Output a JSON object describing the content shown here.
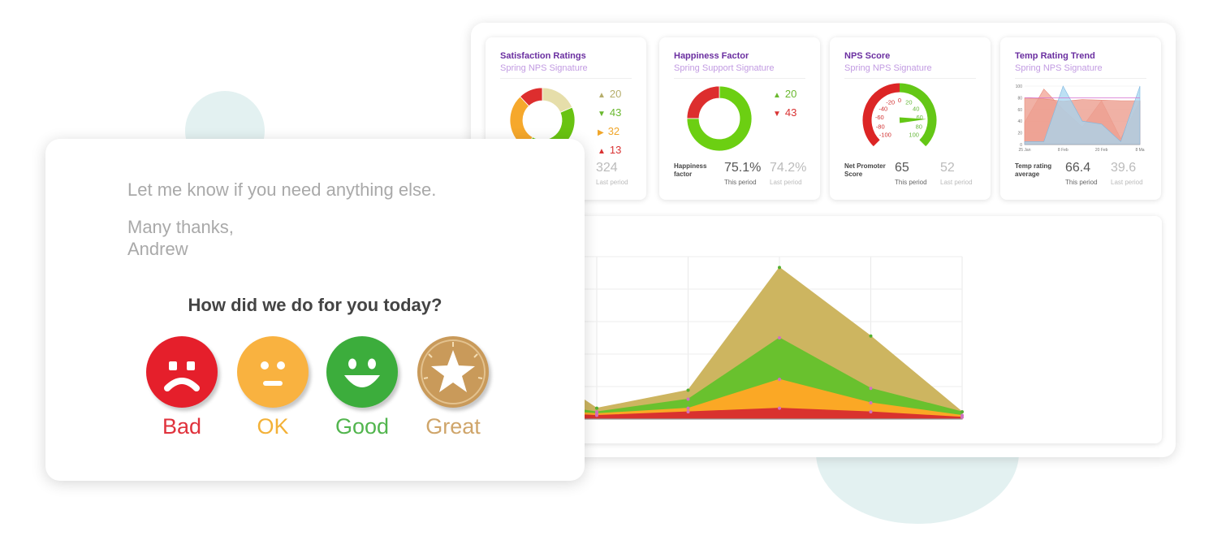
{
  "colors": {
    "title_purple": "#6a2ea0",
    "subtitle_purple": "#c29be2",
    "bad": "#e51f2b",
    "ok": "#f9b240",
    "good": "#3cad3c",
    "great": "#c99a5a"
  },
  "cards": [
    {
      "title": "Satisfaction Ratings",
      "subtitle": "Spring NPS Signature",
      "legend": [
        {
          "arrow": "▲",
          "value": "20",
          "color": "#b5ad6a"
        },
        {
          "arrow": "▼",
          "value": "43",
          "color": "#6ab82f"
        },
        {
          "arrow": "▶",
          "value": "32",
          "color": "#f0a62a"
        },
        {
          "arrow": "▲",
          "value": "13",
          "color": "#d93232"
        }
      ],
      "this_value": "",
      "last_value": "324",
      "this_caption": "",
      "last_caption": "Last period"
    },
    {
      "title": "Happiness Factor",
      "subtitle": "Spring Support Signature",
      "legend": [
        {
          "arrow": "▲",
          "value": "20",
          "color": "#6ab82f"
        },
        {
          "arrow": "▼",
          "value": "43",
          "color": "#d93232"
        }
      ],
      "label": "Happiness factor",
      "this_value": "75.1%",
      "last_value": "74.2%",
      "this_caption": "This period",
      "last_caption": "Last period"
    },
    {
      "title": "NPS Score",
      "subtitle": "Spring NPS Signature",
      "gauge_ticks": [
        "-100",
        "-80",
        "-60",
        "-40",
        "-20",
        "0",
        "20",
        "40",
        "60",
        "80",
        "100"
      ],
      "label": "Net Promoter Score",
      "this_value": "65",
      "last_value": "52",
      "this_caption": "This period",
      "last_caption": "Last period"
    },
    {
      "title": "Temp Rating Trend",
      "subtitle": "Spring NPS Signature",
      "y_ticks": [
        "100",
        "80",
        "60",
        "40",
        "20",
        "0"
      ],
      "x_ticks": [
        "25 Jan",
        "8 Feb",
        "20 Feb",
        "8 Ma"
      ],
      "label": "Temp rating average",
      "this_value": "66.4",
      "last_value": "39.6",
      "this_caption": "This period",
      "last_caption": "Last period"
    }
  ],
  "chart_data": [
    {
      "type": "pie",
      "title": "Satisfaction Ratings",
      "values": [
        20,
        43,
        32,
        13
      ],
      "colors": [
        "#e6deaa",
        "#69c312",
        "#f6a82c",
        "#dd2e2e"
      ]
    },
    {
      "type": "pie",
      "title": "Happiness Factor",
      "values": [
        75.1,
        24.9
      ],
      "colors": [
        "#6ccf12",
        "#dd2e2e"
      ]
    },
    {
      "type": "area",
      "x": [
        0,
        1,
        2,
        3,
        4,
        5,
        6
      ],
      "ylim": [
        0,
        100
      ],
      "series": [
        {
          "values": [
            38,
            95,
            60,
            30,
            75,
            10,
            75
          ],
          "color": "#f3a89a"
        },
        {
          "values": [
            80,
            78,
            74,
            77,
            76,
            75,
            75
          ],
          "color": "#ec9d8f"
        },
        {
          "values": [
            5,
            5,
            100,
            40,
            35,
            5,
            100
          ],
          "color": "#a5d6f0"
        }
      ]
    },
    {
      "type": "area",
      "x": [
        0,
        1,
        2,
        3,
        4,
        5,
        6
      ],
      "ylim": [
        0,
        90
      ],
      "grid": true,
      "series": [
        {
          "values": [
            4,
            4,
            2,
            4,
            6,
            4,
            1
          ],
          "color": "#d9322e"
        },
        {
          "values": [
            6,
            7,
            3,
            6,
            22,
            9,
            2
          ],
          "color": "#fba825"
        },
        {
          "values": [
            9,
            11,
            4,
            11,
            45,
            17,
            4
          ],
          "color": "#69c12e"
        },
        {
          "values": [
            44,
            40,
            6,
            16,
            84,
            46,
            4
          ],
          "color": "#cdb560"
        }
      ]
    }
  ],
  "email": {
    "line1": "Let me know if you need anything else.",
    "line2": "Many thanks,",
    "line3": "Andrew",
    "question": "How did we do for you today?",
    "ratings": [
      {
        "label": "Bad",
        "icon": "sad-face-icon",
        "color": "#e51f2b",
        "text_color": "#e0323c"
      },
      {
        "label": "OK",
        "icon": "neutral-face-icon",
        "color": "#f9b240",
        "text_color": "#f3b138"
      },
      {
        "label": "Good",
        "icon": "happy-face-icon",
        "color": "#3cad3c",
        "text_color": "#52b54e"
      },
      {
        "label": "Great",
        "icon": "star-icon",
        "color": "#c99a5a",
        "text_color": "#cfa56a"
      }
    ]
  }
}
